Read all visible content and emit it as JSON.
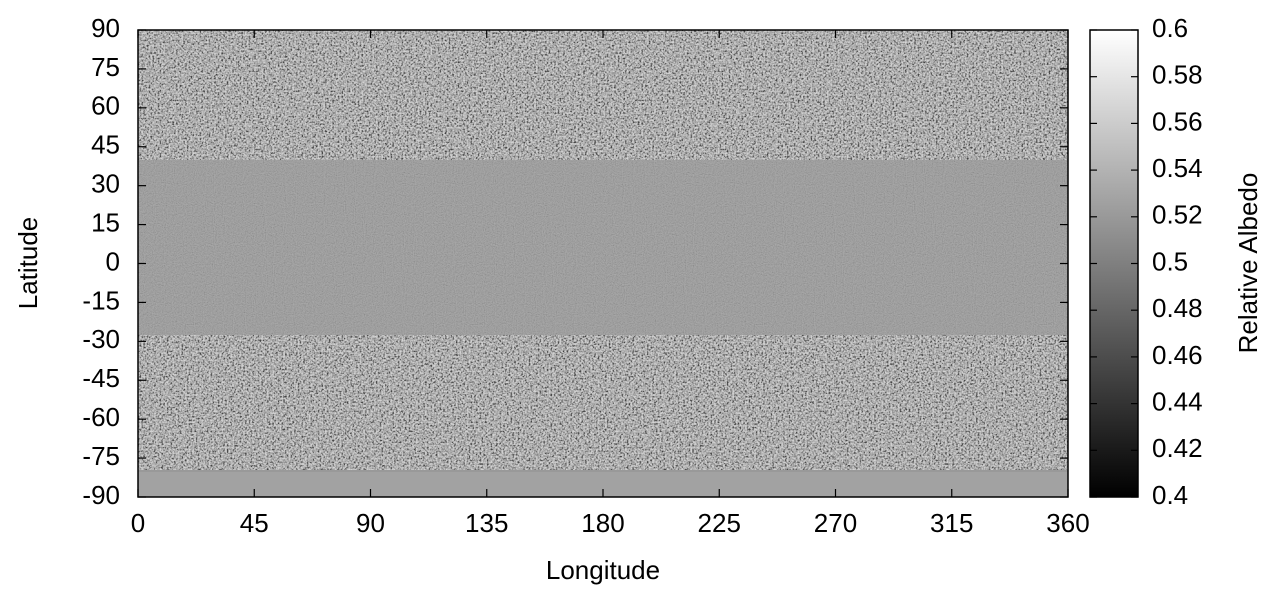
{
  "chart_data": {
    "type": "heatmap",
    "xlabel": "Longitude",
    "ylabel": "Latitude",
    "xlim": [
      0,
      360
    ],
    "xticks": [
      0,
      45,
      90,
      135,
      180,
      225,
      270,
      315,
      360
    ],
    "ylim": [
      -90,
      90
    ],
    "yticks": [
      -90,
      -75,
      -60,
      -45,
      -30,
      -15,
      0,
      15,
      30,
      45,
      60,
      75,
      90
    ],
    "colormap": "gray",
    "colorbar": {
      "label": "Relative Albedo",
      "clim": [
        0.4,
        0.6
      ],
      "ticks": [
        0.4,
        0.42,
        0.44,
        0.46,
        0.48,
        0.5,
        0.52,
        0.54,
        0.56,
        0.58,
        0.6
      ]
    }
  }
}
